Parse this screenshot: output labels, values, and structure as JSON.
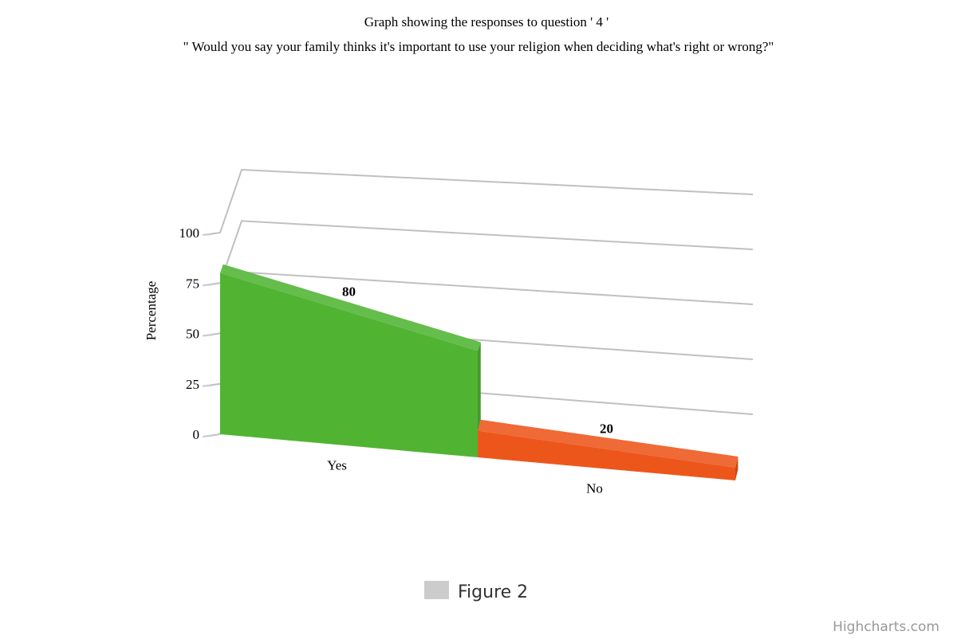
{
  "chart_data": {
    "type": "bar",
    "title": "Graph showing the responses to question ' 4 '",
    "subtitle": "\" Would you say your family thinks it's important to use your religion when deciding what's right or wrong?\"",
    "ylabel": "Percentage",
    "xlabel": "",
    "ylim": [
      0,
      100
    ],
    "yticks": [
      0,
      25,
      50,
      75,
      100
    ],
    "categories": [
      "Yes",
      "No"
    ],
    "values": [
      80,
      20
    ],
    "data_labels": [
      "80",
      "20"
    ],
    "colors": [
      "#50b432",
      "#ed561b"
    ],
    "three_d": true,
    "grid": true,
    "legend": {
      "entries": [
        {
          "name": "Figure 2",
          "color": "#cccccc"
        }
      ],
      "position": "bottom-center"
    }
  },
  "credits": "Highcharts.com"
}
